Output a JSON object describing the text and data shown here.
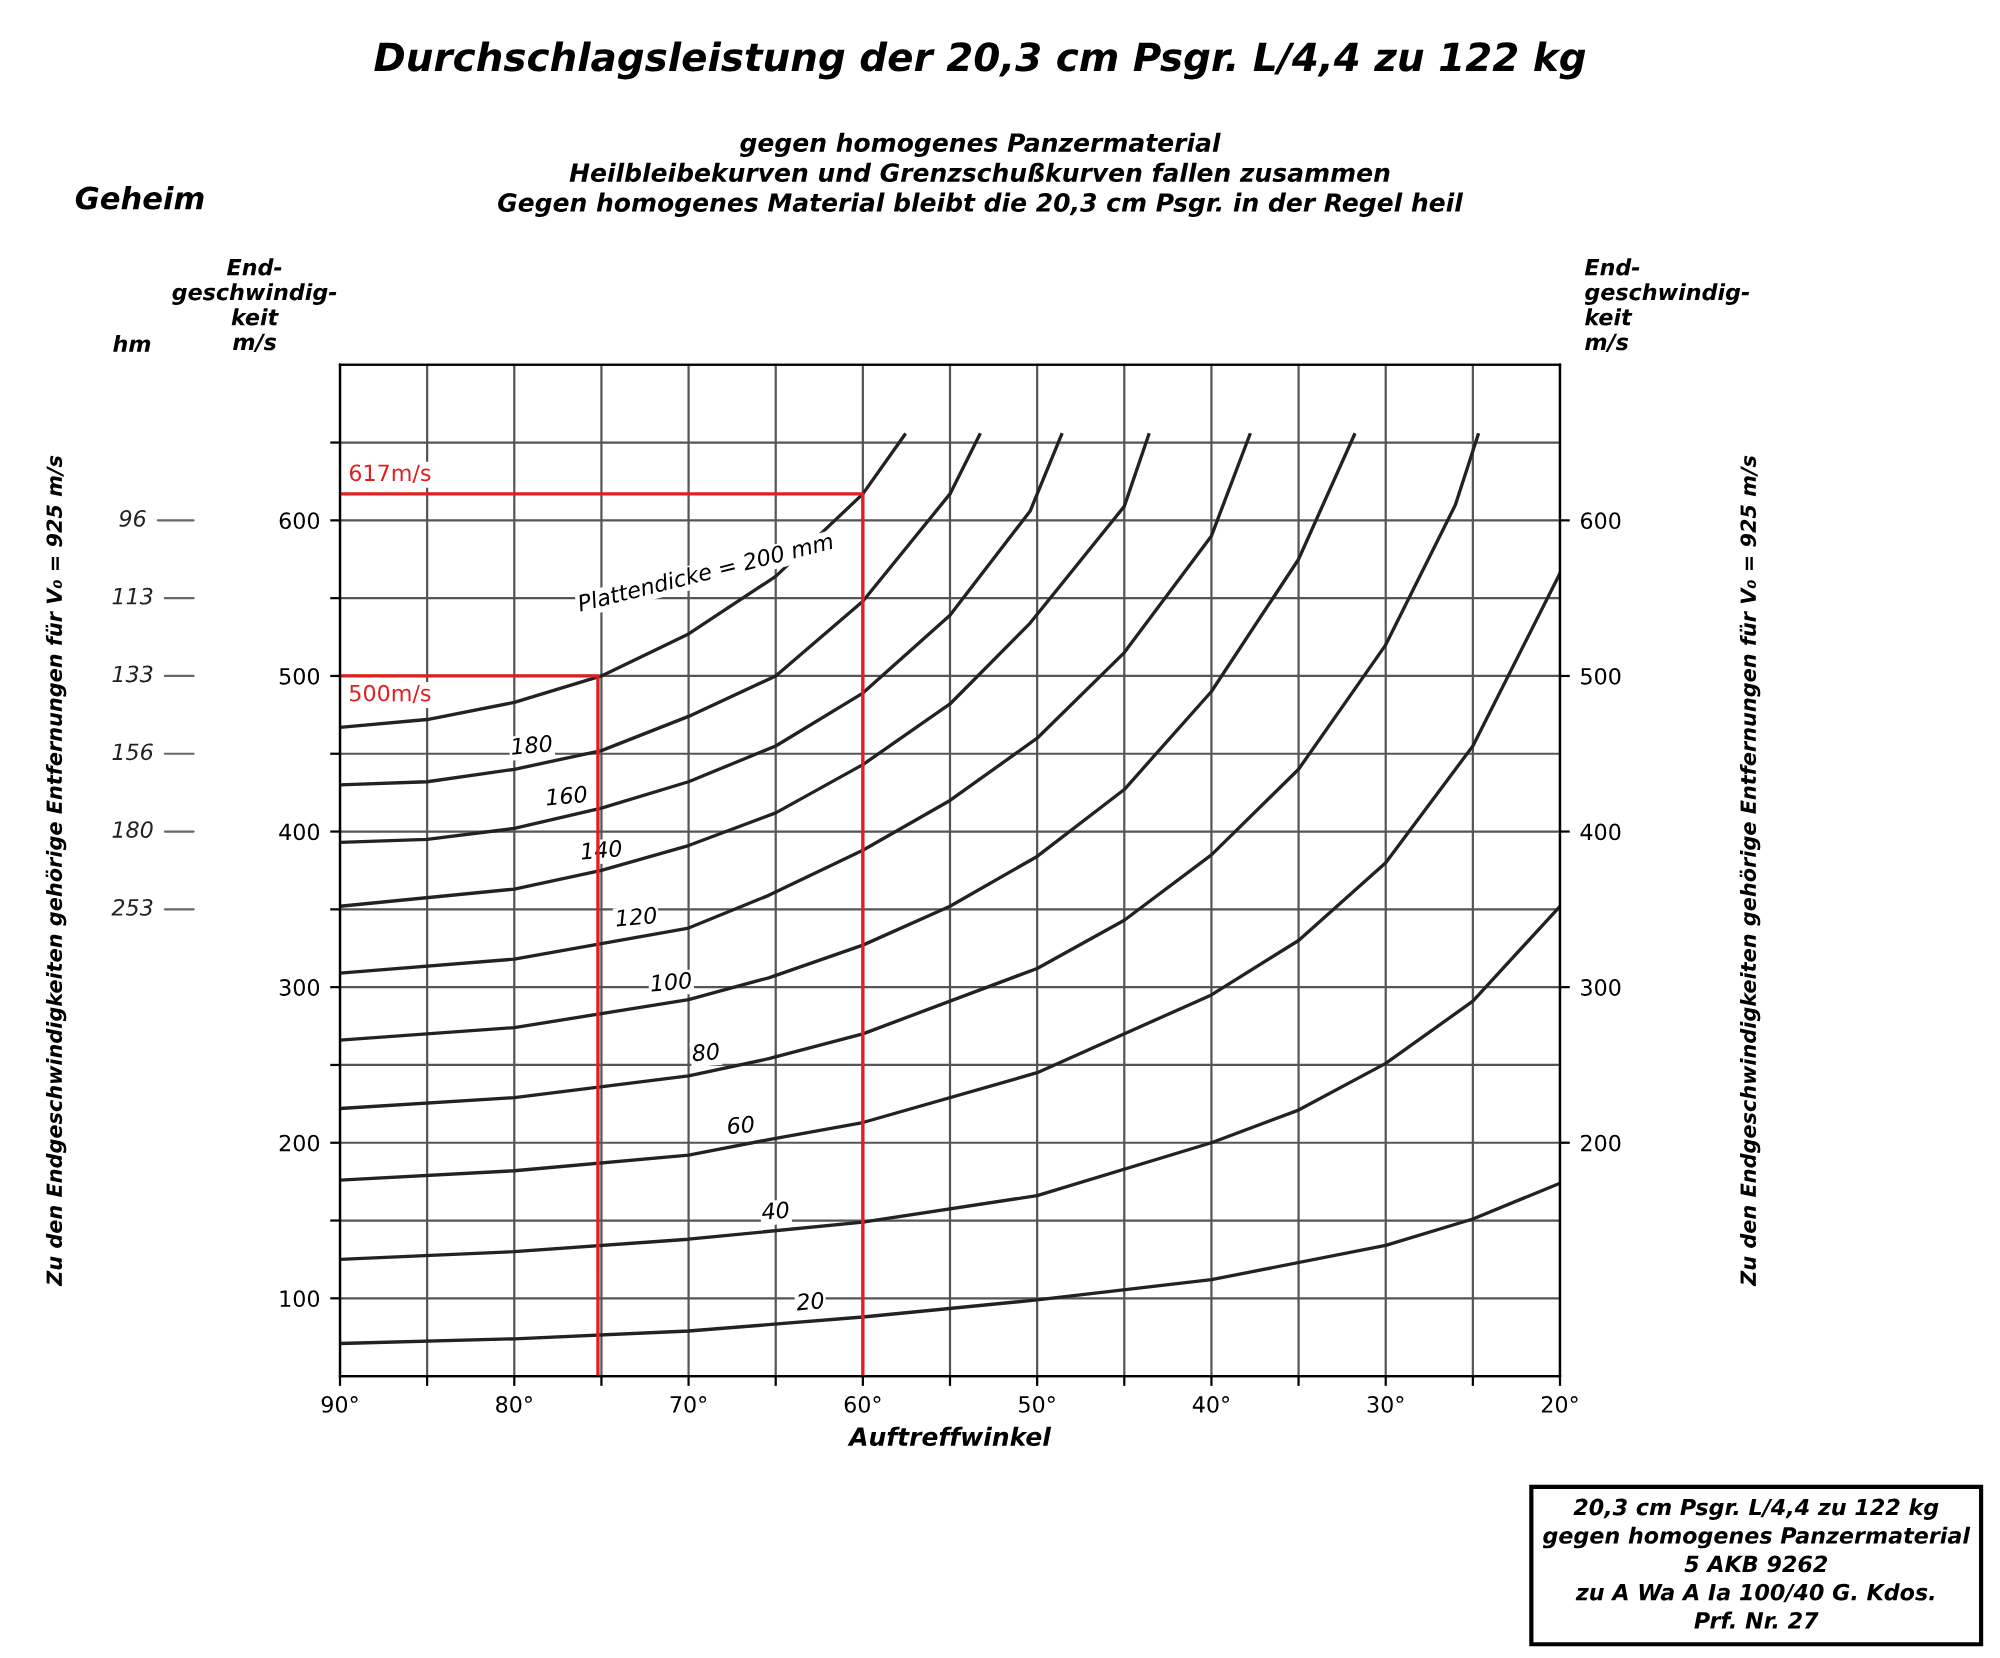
{
  "chart_data": {
    "type": "line",
    "title": "Durchschlagsleistung der 20,3 cm Psgr. L/4,4 zu 122 kg",
    "subtitle": "gegen homogenes Panzermaterial\nHeilbleibekurven und Grenzschußkurven fallen zusammen\nGegen homogenes Material bleibt die 20,3 cm Psgr. in der Regel heil",
    "xlabel": "Auftreffwinkel",
    "ylabel": "End-\ngeschwindig-\nkeit\nm/s",
    "y2label": "End-\ngeschwindig-\nkeit\nm/s",
    "annotations": [
      "Geheim",
      "Zu den Endgeschwindigkeiten gehörige Entfernungen für V₀ = 925 m/s",
      "Zu den Endgeschwindigkeiten gehörige Entfernungen für V₀ = 925 m/s",
      "20,3 cm Psgr. L/4,4 zu 122 kg\ngegen homogenes Panzermaterial\n5 AKB 9262\nzu A Wa A Ia 100/40 G. Kdos.\nPrf. Nr. 27",
      "hm",
      "96",
      "113",
      "133",
      "156",
      "180",
      "253",
      {
        "text": "617m/s",
        "x": 90,
        "y": 617
      },
      {
        "text": "500m/s",
        "x": 90,
        "y": 500
      }
    ],
    "series": [
      {
        "name": "Plattendicke = 200 mm",
        "color": "#222222",
        "x": [
          90,
          85,
          80,
          75,
          70,
          65,
          60,
          57.6
        ],
        "values": [
          467,
          472,
          483,
          500,
          527,
          564,
          617,
          655
        ]
      },
      {
        "name": "180",
        "color": "#222222",
        "x": [
          90,
          85,
          80,
          75,
          70,
          65,
          60,
          55,
          53.3
        ],
        "values": [
          430,
          432,
          440,
          452,
          474,
          500,
          548,
          617,
          655
        ]
      },
      {
        "name": "160",
        "color": "#222222",
        "x": [
          90,
          85,
          80,
          75,
          70,
          65,
          60,
          55,
          50.4,
          48.6
        ],
        "values": [
          393,
          395,
          402,
          415,
          432,
          455,
          489,
          539,
          606,
          655
        ]
      },
      {
        "name": "140",
        "color": "#222222",
        "x": [
          90,
          80,
          75,
          70,
          65,
          60,
          55,
          50.4,
          45,
          43.6
        ],
        "values": [
          352,
          363,
          375,
          391,
          412,
          443,
          482,
          534,
          609,
          655
        ]
      },
      {
        "name": "120",
        "color": "#222222",
        "x": [
          90,
          80,
          70,
          65.4,
          60,
          55,
          50,
          45,
          40,
          37.8
        ],
        "values": [
          309,
          318,
          338,
          359,
          388,
          420,
          460,
          515,
          590,
          655
        ]
      },
      {
        "name": "100",
        "color": "#222222",
        "x": [
          90,
          80,
          70,
          65.4,
          60,
          55,
          50,
          45,
          40,
          35,
          31.8
        ],
        "values": [
          266,
          274,
          292,
          306,
          327,
          352,
          384,
          427,
          490,
          575,
          655
        ]
      },
      {
        "name": "80",
        "color": "#222222",
        "x": [
          90,
          80,
          70,
          65.4,
          60,
          50,
          45,
          40,
          35,
          30,
          26,
          24.7
        ],
        "values": [
          222,
          229,
          243,
          254,
          270,
          312,
          343,
          385,
          440,
          520,
          610,
          655
        ]
      },
      {
        "name": "60",
        "color": "#222222",
        "x": [
          90,
          80,
          70,
          65.4,
          60,
          50,
          40,
          35,
          30,
          25,
          20
        ],
        "values": [
          176,
          182,
          192,
          202,
          213,
          245,
          295,
          330,
          380,
          455,
          566
        ]
      },
      {
        "name": "40",
        "color": "#222222",
        "x": [
          90,
          80,
          70,
          60,
          50,
          40,
          35,
          30,
          25,
          20
        ],
        "values": [
          125,
          130,
          138,
          149,
          166,
          200,
          221,
          251,
          291,
          352
        ]
      },
      {
        "name": "20",
        "color": "#222222",
        "x": [
          90,
          80,
          70,
          60,
          50,
          40,
          30,
          25,
          20
        ],
        "values": [
          71,
          74,
          79,
          88,
          99,
          112,
          134,
          151,
          174
        ]
      },
      {
        "color": "#e02020",
        "x": [
          90,
          60,
          60
        ],
        "values": [
          617,
          617,
          50
        ]
      },
      {
        "color": "#e02020",
        "x": [
          90,
          75.2,
          75.2
        ],
        "values": [
          500,
          500,
          50
        ]
      }
    ],
    "xlim": [
      90,
      20
    ],
    "xticks": [
      {
        "value": 90,
        "label": "90°"
      },
      {
        "value": 85,
        "label": null
      },
      {
        "value": 80,
        "label": "80°"
      },
      {
        "value": 75,
        "label": null
      },
      {
        "value": 70,
        "label": "70°"
      },
      {
        "value": 65,
        "label": null
      },
      {
        "value": 60,
        "label": "60°"
      },
      {
        "value": 55,
        "label": null
      },
      {
        "value": 50,
        "label": "50°"
      },
      {
        "value": 45,
        "label": null
      },
      {
        "value": 40,
        "label": "40°"
      },
      {
        "value": 35,
        "label": null
      },
      {
        "value": 30,
        "label": "30°"
      },
      {
        "value": 25,
        "label": null
      },
      {
        "value": 20,
        "label": "20°"
      }
    ],
    "ylim": [
      50,
      700
    ],
    "yticks": [
      100,
      {
        "value": 150,
        "label": null
      },
      200,
      {
        "value": 250,
        "label": null
      },
      300,
      {
        "value": 350,
        "label": null
      },
      400,
      {
        "value": 450,
        "label": null
      },
      500,
      {
        "value": 550,
        "label": null
      },
      600,
      {
        "value": 650,
        "label": null
      }
    ],
    "y2lim": [
      50,
      700
    ],
    "y2ticks": [
      200,
      300,
      400,
      500,
      600
    ],
    "grid": true,
    "legend": false,
    "marker": "none",
    "line_style": "solid"
  }
}
